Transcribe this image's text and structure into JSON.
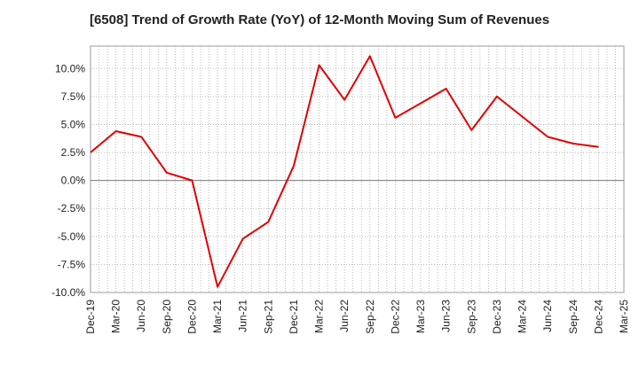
{
  "chart_data": {
    "type": "line",
    "title": "[6508]  Trend of Growth Rate (YoY) of 12-Month Moving Sum of Revenues",
    "xlabel": "",
    "ylabel": "",
    "ylim": [
      -10,
      12
    ],
    "yticks": [
      10,
      7.5,
      5,
      2.5,
      0,
      -2.5,
      -5,
      -7.5,
      -10
    ],
    "ytick_labels": [
      "10.0%",
      "7.5%",
      "5.0%",
      "2.5%",
      "0.0%",
      "-2.5%",
      "-5.0%",
      "-7.5%",
      "-10.0%"
    ],
    "xtick_labels": [
      "Dec-19",
      "Mar-20",
      "Jun-20",
      "Sep-20",
      "Dec-20",
      "Mar-21",
      "Jun-21",
      "Sep-21",
      "Dec-21",
      "Mar-22",
      "Jun-22",
      "Sep-22",
      "Dec-22",
      "Mar-23",
      "Jun-23",
      "Sep-23",
      "Dec-23",
      "Mar-24",
      "Jun-24",
      "Sep-24",
      "Dec-24",
      "Mar-25"
    ],
    "grid": true,
    "series": [
      {
        "color": "#e00000",
        "x": [
          "Dec-19",
          "Mar-20",
          "Jun-20",
          "Sep-20",
          "Dec-20",
          "Mar-21",
          "Jun-21",
          "Sep-21",
          "Dec-21",
          "Mar-22",
          "Jun-22",
          "Sep-22",
          "Dec-22",
          "Mar-23",
          "Jun-23",
          "Sep-23",
          "Dec-23",
          "Mar-24",
          "Jun-24",
          "Sep-24",
          "Dec-24"
        ],
        "values": [
          2.5,
          4.4,
          3.9,
          0.7,
          0.0,
          -9.5,
          -5.2,
          -3.7,
          1.3,
          10.3,
          7.2,
          11.1,
          5.6,
          6.9,
          8.2,
          4.5,
          7.5,
          5.7,
          3.9,
          3.3,
          3.0
        ]
      }
    ]
  }
}
